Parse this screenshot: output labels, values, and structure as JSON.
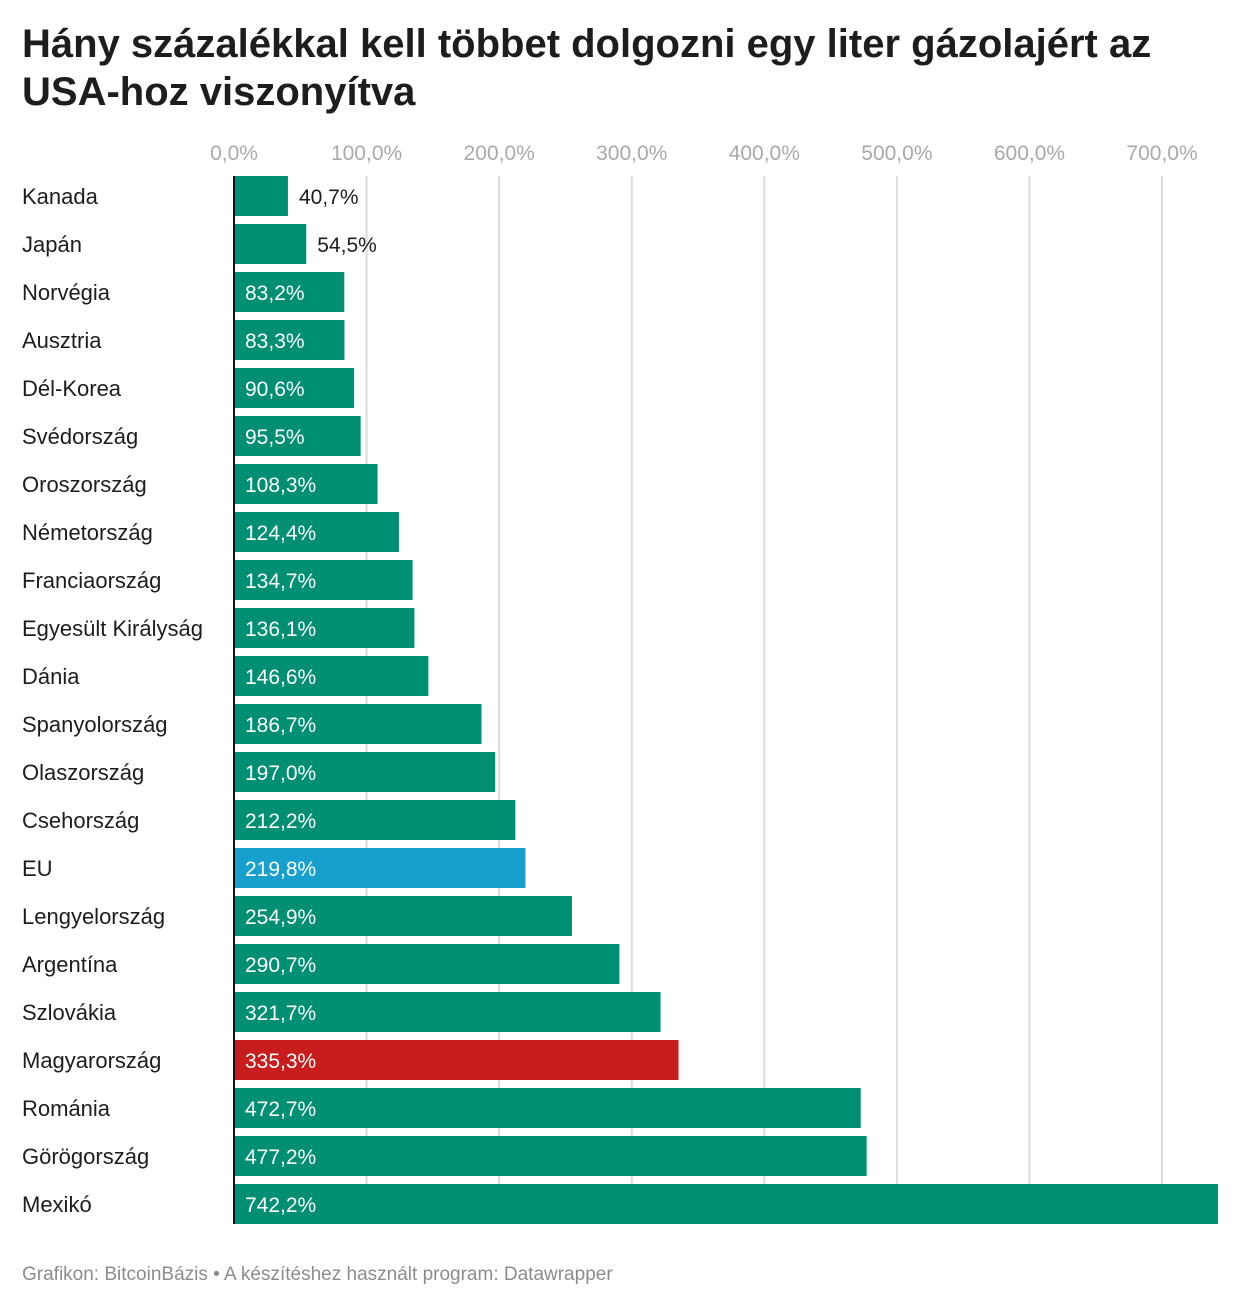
{
  "title": "Hány százalékkal kell többet dolgozni egy liter gázolajért az USA-hoz viszonyítva",
  "footer": "Grafikon: BitcoinBázis • A készítéshez használt program: Datawrapper",
  "colors": {
    "bar_default": "#008f73",
    "bar_eu": "#17a0ce",
    "bar_hungary": "#c71e1d",
    "grid": "#dcdcdc",
    "axis": "#111111"
  },
  "chart_data": {
    "type": "bar",
    "orientation": "horizontal",
    "title": "Hány százalékkal kell többet dolgozni egy liter gázolajért az USA-hoz viszonyítva",
    "xlim": [
      0,
      742.2
    ],
    "ticks": [
      0,
      100,
      200,
      300,
      400,
      500,
      600,
      700
    ],
    "tick_labels": [
      "0,0%",
      "100,0%",
      "200,0%",
      "300,0%",
      "400,0%",
      "500,0%",
      "600,0%",
      "700,0%"
    ],
    "grid": true,
    "categories": [
      "Kanada",
      "Japán",
      "Norvégia",
      "Ausztria",
      "Dél-Korea",
      "Svédország",
      "Oroszország",
      "Németország",
      "Franciaország",
      "Egyesült Királyság",
      "Dánia",
      "Spanyolország",
      "Olaszország",
      "Csehország",
      "EU",
      "Lengyelország",
      "Argentína",
      "Szlovákia",
      "Magyarország",
      "Románia",
      "Görögország",
      "Mexikó"
    ],
    "values": [
      40.7,
      54.5,
      83.2,
      83.3,
      90.6,
      95.5,
      108.3,
      124.4,
      134.7,
      136.1,
      146.6,
      186.7,
      197.0,
      212.2,
      219.8,
      254.9,
      290.7,
      321.7,
      335.3,
      472.7,
      477.2,
      742.2
    ],
    "value_labels": [
      "40,7%",
      "54,5%",
      "83,2%",
      "83,3%",
      "90,6%",
      "95,5%",
      "108,3%",
      "124,4%",
      "134,7%",
      "136,1%",
      "146,6%",
      "186,7%",
      "197,0%",
      "212,2%",
      "219,8%",
      "254,9%",
      "290,7%",
      "321,7%",
      "335,3%",
      "472,7%",
      "477,2%",
      "742,2%"
    ],
    "highlights": {
      "EU": "#17a0ce",
      "Magyarország": "#c71e1d"
    }
  }
}
